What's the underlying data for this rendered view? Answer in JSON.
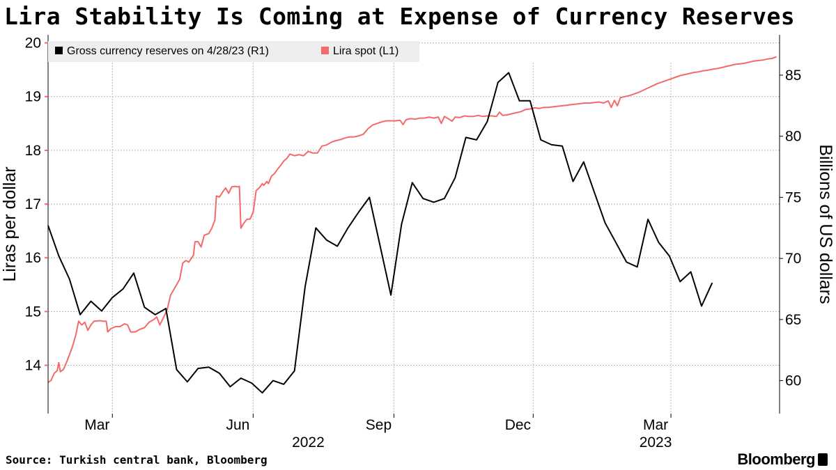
{
  "title": "Lira Stability Is Coming at Expense of Currency Reserves",
  "source": "Source: Turkish central bank, Bloomberg",
  "brand": "Bloomberg",
  "colors": {
    "lira": "#f46a6a",
    "reserves": "#000000",
    "grid": "#b8b8b8",
    "legend_bg": "#eeeeee"
  },
  "chart_data": {
    "type": "line",
    "title": "Lira Stability Is Coming at Expense of Currency Reserves",
    "left_axis": {
      "label": "Liras per dollar",
      "ylim": [
        13.1,
        20.15
      ],
      "ticks": [
        14,
        15,
        16,
        17,
        18,
        19,
        20
      ]
    },
    "right_axis": {
      "label": "Billions of US dollars",
      "ylim": [
        57.3,
        88.3
      ],
      "ticks": [
        60,
        65,
        70,
        75,
        80,
        85
      ]
    },
    "x_axis": {
      "unit": "days since Jan 28 2022",
      "xlim": [
        0,
        478
      ],
      "month_ticks": [
        {
          "label": "Mar",
          "x": 32
        },
        {
          "label": "Jun",
          "x": 124
        },
        {
          "label": "Sep",
          "x": 216
        },
        {
          "label": "Dec",
          "x": 307
        },
        {
          "label": "Mar",
          "x": 397
        }
      ],
      "year_labels": [
        {
          "label": "2022",
          "x": 170
        },
        {
          "label": "2023",
          "x": 397
        }
      ],
      "grid_x": [
        42,
        134,
        226,
        317,
        407
      ]
    },
    "legend": [
      "Gross currency reserves on 4/28/23 (R1)",
      "Lira spot (L1)"
    ],
    "series": [
      {
        "name": "Lira spot (L1)",
        "axis": "left",
        "color": "#f46a6a",
        "points": [
          [
            0,
            13.68
          ],
          [
            2,
            13.72
          ],
          [
            4,
            13.85
          ],
          [
            6,
            13.9
          ],
          [
            7,
            14.05
          ],
          [
            8,
            13.88
          ],
          [
            10,
            13.92
          ],
          [
            12,
            14.05
          ],
          [
            14,
            14.2
          ],
          [
            16,
            14.35
          ],
          [
            18,
            14.55
          ],
          [
            20,
            14.82
          ],
          [
            22,
            14.75
          ],
          [
            24,
            14.8
          ],
          [
            26,
            14.65
          ],
          [
            28,
            14.75
          ],
          [
            30,
            14.82
          ],
          [
            34,
            14.83
          ],
          [
            36,
            14.82
          ],
          [
            38,
            14.82
          ],
          [
            39,
            14.62
          ],
          [
            41,
            14.68
          ],
          [
            44,
            14.72
          ],
          [
            47,
            14.72
          ],
          [
            50,
            14.77
          ],
          [
            52,
            14.75
          ],
          [
            54,
            14.62
          ],
          [
            57,
            14.62
          ],
          [
            60,
            14.67
          ],
          [
            63,
            14.7
          ],
          [
            66,
            14.8
          ],
          [
            69,
            14.85
          ],
          [
            71,
            14.9
          ],
          [
            73,
            14.75
          ],
          [
            76,
            14.92
          ],
          [
            78,
            15.05
          ],
          [
            80,
            15.3
          ],
          [
            83,
            15.45
          ],
          [
            86,
            15.6
          ],
          [
            88,
            15.9
          ],
          [
            90,
            15.95
          ],
          [
            92,
            15.92
          ],
          [
            95,
            16.05
          ],
          [
            96,
            16.3
          ],
          [
            98,
            16.3
          ],
          [
            100,
            16.2
          ],
          [
            102,
            16.42
          ],
          [
            105,
            16.45
          ],
          [
            107,
            16.55
          ],
          [
            109,
            16.7
          ],
          [
            110,
            17.15
          ],
          [
            112,
            17.13
          ],
          [
            114,
            17.22
          ],
          [
            116,
            17.3
          ],
          [
            118,
            17.2
          ],
          [
            120,
            17.32
          ],
          [
            122,
            17.33
          ],
          [
            124,
            17.32
          ],
          [
            125,
            17.33
          ],
          [
            126,
            16.55
          ],
          [
            127,
            16.6
          ],
          [
            128,
            16.65
          ],
          [
            130,
            16.72
          ],
          [
            132,
            16.72
          ],
          [
            134,
            16.85
          ],
          [
            136,
            17.25
          ],
          [
            138,
            17.3
          ],
          [
            140,
            17.38
          ],
          [
            141,
            17.35
          ],
          [
            143,
            17.42
          ],
          [
            144,
            17.38
          ],
          [
            146,
            17.52
          ],
          [
            148,
            17.57
          ],
          [
            150,
            17.65
          ],
          [
            152,
            17.72
          ],
          [
            154,
            17.8
          ],
          [
            156,
            17.85
          ],
          [
            158,
            17.93
          ],
          [
            161,
            17.9
          ],
          [
            164,
            17.92
          ],
          [
            167,
            17.9
          ],
          [
            170,
            17.98
          ],
          [
            173,
            17.95
          ],
          [
            176,
            17.95
          ],
          [
            179,
            18.08
          ],
          [
            182,
            18.1
          ],
          [
            185,
            18.15
          ],
          [
            188,
            18.18
          ],
          [
            191,
            18.2
          ],
          [
            194,
            18.23
          ],
          [
            197,
            18.25
          ],
          [
            200,
            18.25
          ],
          [
            203,
            18.27
          ],
          [
            206,
            18.3
          ],
          [
            209,
            18.4
          ],
          [
            212,
            18.47
          ],
          [
            215,
            18.5
          ],
          [
            218,
            18.53
          ],
          [
            221,
            18.55
          ],
          [
            224,
            18.55
          ],
          [
            227,
            18.55
          ],
          [
            230,
            18.56
          ],
          [
            232,
            18.48
          ],
          [
            234,
            18.57
          ],
          [
            237,
            18.59
          ],
          [
            240,
            18.58
          ],
          [
            243,
            18.6
          ],
          [
            246,
            18.6
          ],
          [
            249,
            18.62
          ],
          [
            252,
            18.6
          ],
          [
            255,
            18.62
          ],
          [
            257,
            18.5
          ],
          [
            259,
            18.63
          ],
          [
            262,
            18.58
          ],
          [
            264,
            18.54
          ],
          [
            266,
            18.62
          ],
          [
            269,
            18.61
          ],
          [
            272,
            18.64
          ],
          [
            275,
            18.63
          ],
          [
            278,
            18.63
          ],
          [
            281,
            18.65
          ],
          [
            284,
            18.63
          ],
          [
            287,
            18.64
          ],
          [
            290,
            18.64
          ],
          [
            293,
            18.63
          ],
          [
            295,
            18.71
          ],
          [
            297,
            18.65
          ],
          [
            300,
            18.66
          ],
          [
            303,
            18.68
          ],
          [
            306,
            18.7
          ],
          [
            309,
            18.72
          ],
          [
            312,
            18.76
          ],
          [
            315,
            18.77
          ],
          [
            318,
            18.79
          ],
          [
            321,
            18.78
          ],
          [
            324,
            18.8
          ],
          [
            327,
            18.8
          ],
          [
            330,
            18.81
          ],
          [
            333,
            18.82
          ],
          [
            336,
            18.83
          ],
          [
            339,
            18.84
          ],
          [
            342,
            18.85
          ],
          [
            345,
            18.86
          ],
          [
            348,
            18.87
          ],
          [
            351,
            18.88
          ],
          [
            354,
            18.88
          ],
          [
            357,
            18.89
          ],
          [
            360,
            18.9
          ],
          [
            363,
            18.88
          ],
          [
            366,
            18.92
          ],
          [
            368,
            18.8
          ],
          [
            370,
            18.93
          ],
          [
            372,
            18.83
          ],
          [
            374,
            18.98
          ],
          [
            377,
            19.0
          ],
          [
            380,
            19.02
          ],
          [
            383,
            19.05
          ],
          [
            386,
            19.08
          ],
          [
            389,
            19.12
          ],
          [
            392,
            19.16
          ],
          [
            395,
            19.2
          ],
          [
            398,
            19.24
          ],
          [
            401,
            19.27
          ],
          [
            404,
            19.3
          ],
          [
            407,
            19.33
          ],
          [
            410,
            19.36
          ],
          [
            413,
            19.39
          ],
          [
            416,
            19.41
          ],
          [
            419,
            19.43
          ],
          [
            422,
            19.45
          ],
          [
            425,
            19.46
          ],
          [
            428,
            19.48
          ],
          [
            431,
            19.49
          ],
          [
            434,
            19.51
          ],
          [
            437,
            19.52
          ],
          [
            440,
            19.54
          ],
          [
            443,
            19.56
          ],
          [
            446,
            19.58
          ],
          [
            449,
            19.6
          ],
          [
            452,
            19.61
          ],
          [
            455,
            19.62
          ],
          [
            458,
            19.64
          ],
          [
            461,
            19.66
          ],
          [
            464,
            19.67
          ],
          [
            467,
            19.68
          ],
          [
            470,
            19.7
          ],
          [
            473,
            19.71
          ],
          [
            476,
            19.74
          ]
        ]
      },
      {
        "name": "Gross currency reserves on 4/28/23 (R1)",
        "axis": "right",
        "color": "#000000",
        "points": [
          [
            0,
            72.7
          ],
          [
            7,
            70.2
          ],
          [
            14,
            68.3
          ],
          [
            21,
            65.4
          ],
          [
            28,
            66.5
          ],
          [
            35,
            65.7
          ],
          [
            42,
            66.8
          ],
          [
            49,
            67.5
          ],
          [
            56,
            68.8
          ],
          [
            63,
            66.0
          ],
          [
            70,
            65.4
          ],
          [
            77,
            65.9
          ],
          [
            84,
            60.9
          ],
          [
            91,
            59.9
          ],
          [
            98,
            61.0
          ],
          [
            105,
            61.1
          ],
          [
            112,
            60.6
          ],
          [
            119,
            59.5
          ],
          [
            126,
            60.2
          ],
          [
            133,
            59.8
          ],
          [
            140,
            59.0
          ],
          [
            147,
            60.0
          ],
          [
            154,
            59.7
          ],
          [
            161,
            60.8
          ],
          [
            168,
            67.7
          ],
          [
            175,
            72.5
          ],
          [
            182,
            71.5
          ],
          [
            189,
            71.0
          ],
          [
            196,
            72.5
          ],
          [
            203,
            73.8
          ],
          [
            210,
            75.0
          ],
          [
            217,
            71.0
          ],
          [
            224,
            67.0
          ],
          [
            231,
            72.8
          ],
          [
            238,
            76.2
          ],
          [
            245,
            74.9
          ],
          [
            252,
            74.6
          ],
          [
            259,
            74.9
          ],
          [
            266,
            76.6
          ],
          [
            273,
            79.9
          ],
          [
            280,
            79.7
          ],
          [
            287,
            81.2
          ],
          [
            294,
            84.4
          ],
          [
            301,
            85.2
          ],
          [
            308,
            82.9
          ],
          [
            315,
            82.9
          ],
          [
            322,
            79.7
          ],
          [
            329,
            79.3
          ],
          [
            336,
            79.2
          ],
          [
            343,
            76.3
          ],
          [
            350,
            77.9
          ],
          [
            357,
            75.4
          ],
          [
            364,
            72.9
          ],
          [
            371,
            71.3
          ],
          [
            378,
            69.7
          ],
          [
            385,
            69.3
          ],
          [
            392,
            73.2
          ],
          [
            399,
            71.3
          ],
          [
            406,
            70.2
          ],
          [
            413,
            68.1
          ],
          [
            420,
            68.9
          ],
          [
            427,
            66.1
          ],
          [
            434,
            68.0
          ]
        ]
      }
    ]
  }
}
